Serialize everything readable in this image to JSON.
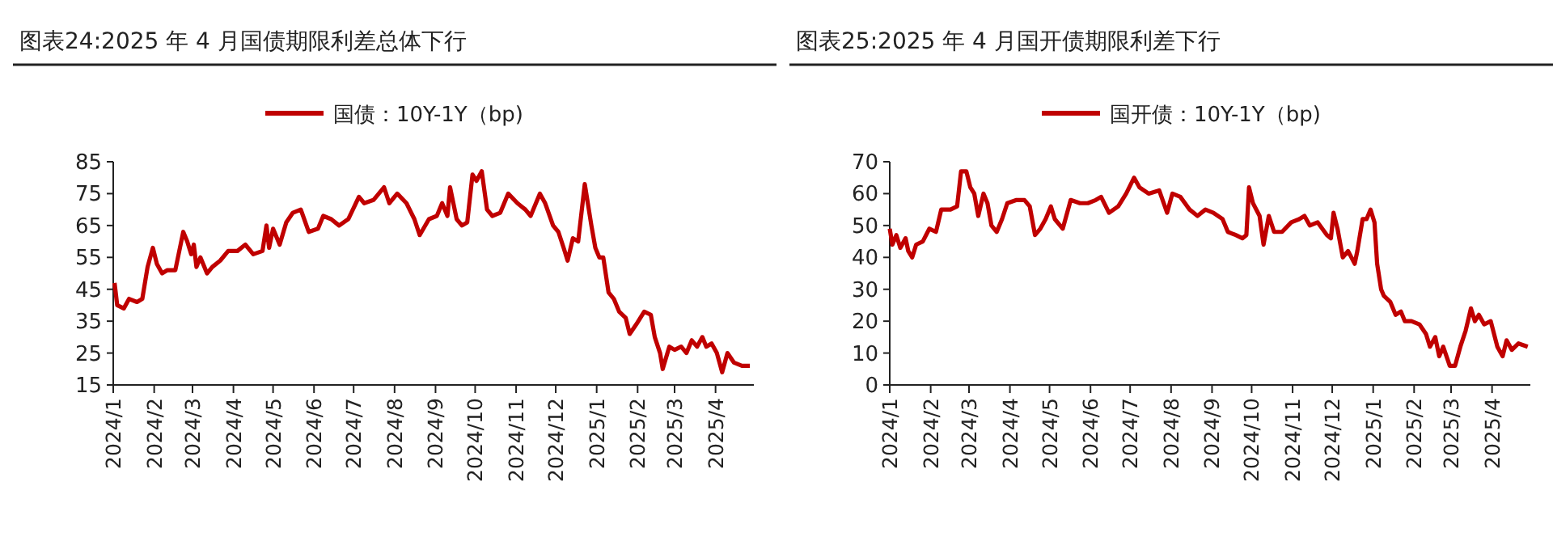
{
  "chart_data": [
    {
      "type": "line",
      "title": "图表24:2025 年 4 月国债期限利差总体下行",
      "legend": "top",
      "grid": false,
      "marker": "none",
      "line_style": "solid",
      "ylim": [
        15,
        85
      ],
      "yticks": [
        15,
        25,
        35,
        45,
        55,
        65,
        75,
        85
      ],
      "xlim": [
        "2024-01-01",
        "2025-04-30"
      ],
      "xticks": [
        {
          "value": "2024-01-01",
          "label": "2024/1"
        },
        {
          "value": "2024-02-01",
          "label": "2024/2"
        },
        {
          "value": "2024-03-01",
          "label": "2024/3"
        },
        {
          "value": "2024-04-01",
          "label": "2024/4"
        },
        {
          "value": "2024-05-01",
          "label": "2024/5"
        },
        {
          "value": "2024-06-01",
          "label": "2024/6"
        },
        {
          "value": "2024-07-01",
          "label": "2024/7"
        },
        {
          "value": "2024-08-01",
          "label": "2024/8"
        },
        {
          "value": "2024-09-01",
          "label": "2024/9"
        },
        {
          "value": "2024-10-01",
          "label": "2024/10"
        },
        {
          "value": "2024-11-01",
          "label": "2024/11"
        },
        {
          "value": "2024-12-01",
          "label": "2024/12"
        },
        {
          "value": "2025-01-01",
          "label": "2025/1"
        },
        {
          "value": "2025-02-01",
          "label": "2025/2"
        },
        {
          "value": "2025-03-01",
          "label": "2025/3"
        },
        {
          "value": "2025-04-01",
          "label": "2025/4"
        }
      ],
      "x": [
        "2024-01-02",
        "2024-01-04",
        "2024-01-09",
        "2024-01-13",
        "2024-01-19",
        "2024-01-23",
        "2024-01-27",
        "2024-01-31",
        "2024-02-03",
        "2024-02-07",
        "2024-02-11",
        "2024-02-17",
        "2024-02-23",
        "2024-02-26",
        "2024-02-29",
        "2024-03-02",
        "2024-03-04",
        "2024-03-07",
        "2024-03-12",
        "2024-03-16",
        "2024-03-22",
        "2024-03-28",
        "2024-04-04",
        "2024-04-10",
        "2024-04-16",
        "2024-04-23",
        "2024-04-26",
        "2024-04-28",
        "2024-05-01",
        "2024-05-06",
        "2024-05-11",
        "2024-05-16",
        "2024-05-22",
        "2024-05-28",
        "2024-06-04",
        "2024-06-08",
        "2024-06-14",
        "2024-06-20",
        "2024-06-27",
        "2024-07-05",
        "2024-07-09",
        "2024-07-16",
        "2024-07-24",
        "2024-07-28",
        "2024-08-03",
        "2024-08-10",
        "2024-08-16",
        "2024-08-20",
        "2024-08-27",
        "2024-09-02",
        "2024-09-06",
        "2024-09-10",
        "2024-09-12",
        "2024-09-17",
        "2024-09-21",
        "2024-09-25",
        "2024-09-29",
        "2024-10-02",
        "2024-10-06",
        "2024-10-10",
        "2024-10-14",
        "2024-10-20",
        "2024-10-26",
        "2024-11-02",
        "2024-11-08",
        "2024-11-12",
        "2024-11-19",
        "2024-11-23",
        "2024-11-29",
        "2024-12-03",
        "2024-12-07",
        "2024-12-10",
        "2024-12-14",
        "2024-12-18",
        "2024-12-23",
        "2024-12-28",
        "2024-12-31",
        "2025-01-03",
        "2025-01-06",
        "2025-01-10",
        "2025-01-14",
        "2025-01-18",
        "2025-01-23",
        "2025-01-26",
        "2025-01-31",
        "2025-02-06",
        "2025-02-11",
        "2025-02-14",
        "2025-02-18",
        "2025-02-20",
        "2025-02-25",
        "2025-03-01",
        "2025-03-06",
        "2025-03-10",
        "2025-03-14",
        "2025-03-18",
        "2025-03-22",
        "2025-03-25",
        "2025-03-29",
        "2025-04-02",
        "2025-04-06",
        "2025-04-10",
        "2025-04-15",
        "2025-04-21",
        "2025-04-27"
      ],
      "series": [
        {
          "name": "国债：10Y-1Y（bp)",
          "color": "#c00000",
          "values": [
            47,
            40,
            39,
            42,
            41,
            42,
            52,
            58,
            53,
            50,
            51,
            51,
            63,
            60,
            56,
            59,
            52,
            55,
            50,
            52,
            54,
            57,
            57,
            59,
            56,
            57,
            65,
            58,
            64,
            59,
            66,
            69,
            70,
            63,
            64,
            68,
            67,
            65,
            67,
            74,
            72,
            73,
            77,
            72,
            75,
            72,
            67,
            62,
            67,
            68,
            72,
            68,
            77,
            67,
            65,
            66,
            81,
            79,
            82,
            70,
            68,
            69,
            75,
            72,
            70,
            68,
            75,
            72,
            65,
            63,
            58,
            54,
            61,
            60,
            78,
            65,
            58,
            55,
            55,
            44,
            42,
            38,
            36,
            31,
            34,
            38,
            37,
            30,
            25,
            20,
            27,
            26,
            27,
            25,
            29,
            27,
            30,
            27,
            28,
            25,
            19,
            25,
            22,
            21,
            21
          ]
        }
      ]
    },
    {
      "type": "line",
      "title": "图表25:2025 年 4 月国开债期限利差下行",
      "legend": "top",
      "grid": false,
      "marker": "none",
      "line_style": "solid",
      "ylim": [
        0,
        70
      ],
      "yticks": [
        0,
        10,
        20,
        30,
        40,
        50,
        60,
        70
      ],
      "xlim": [
        "2024-01-01",
        "2025-04-30"
      ],
      "xticks": [
        {
          "value": "2024-01-01",
          "label": "2024/1"
        },
        {
          "value": "2024-02-01",
          "label": "2024/2"
        },
        {
          "value": "2024-03-01",
          "label": "2024/3"
        },
        {
          "value": "2024-04-01",
          "label": "2024/4"
        },
        {
          "value": "2024-05-01",
          "label": "2024/5"
        },
        {
          "value": "2024-06-01",
          "label": "2024/6"
        },
        {
          "value": "2024-07-01",
          "label": "2024/7"
        },
        {
          "value": "2024-08-01",
          "label": "2024/8"
        },
        {
          "value": "2024-09-01",
          "label": "2024/9"
        },
        {
          "value": "2024-10-01",
          "label": "2024/10"
        },
        {
          "value": "2024-11-01",
          "label": "2024/11"
        },
        {
          "value": "2024-12-01",
          "label": "2024/12"
        },
        {
          "value": "2025-01-01",
          "label": "2025/1"
        },
        {
          "value": "2025-02-01",
          "label": "2025/2"
        },
        {
          "value": "2025-03-01",
          "label": "2025/3"
        },
        {
          "value": "2025-04-01",
          "label": "2025/4"
        }
      ],
      "x": [
        "2024-01-01",
        "2024-01-03",
        "2024-01-06",
        "2024-01-09",
        "2024-01-13",
        "2024-01-15",
        "2024-01-18",
        "2024-01-21",
        "2024-01-26",
        "2024-01-31",
        "2024-02-05",
        "2024-02-09",
        "2024-02-16",
        "2024-02-21",
        "2024-02-24",
        "2024-02-28",
        "2024-03-02",
        "2024-03-05",
        "2024-03-08",
        "2024-03-12",
        "2024-03-15",
        "2024-03-18",
        "2024-03-22",
        "2024-03-26",
        "2024-03-30",
        "2024-04-06",
        "2024-04-12",
        "2024-04-16",
        "2024-04-20",
        "2024-04-24",
        "2024-04-28",
        "2024-05-02",
        "2024-05-05",
        "2024-05-11",
        "2024-05-17",
        "2024-05-24",
        "2024-05-30",
        "2024-06-05",
        "2024-06-09",
        "2024-06-15",
        "2024-06-22",
        "2024-06-28",
        "2024-07-04",
        "2024-07-08",
        "2024-07-15",
        "2024-07-23",
        "2024-07-29",
        "2024-08-02",
        "2024-08-08",
        "2024-08-15",
        "2024-08-21",
        "2024-08-27",
        "2024-09-02",
        "2024-09-09",
        "2024-09-13",
        "2024-09-19",
        "2024-09-24",
        "2024-09-27",
        "2024-09-29",
        "2024-10-02",
        "2024-10-07",
        "2024-10-10",
        "2024-10-14",
        "2024-10-18",
        "2024-10-24",
        "2024-10-31",
        "2024-11-06",
        "2024-11-10",
        "2024-11-14",
        "2024-11-20",
        "2024-11-27",
        "2024-11-30",
        "2024-12-02",
        "2024-12-05",
        "2024-12-09",
        "2024-12-13",
        "2024-12-18",
        "2024-12-20",
        "2024-12-24",
        "2024-12-27",
        "2024-12-30",
        "2025-01-02",
        "2025-01-04",
        "2025-01-07",
        "2025-01-09",
        "2025-01-14",
        "2025-01-18",
        "2025-01-22",
        "2025-01-25",
        "2025-01-30",
        "2025-02-05",
        "2025-02-10",
        "2025-02-13",
        "2025-02-17",
        "2025-02-20",
        "2025-02-23",
        "2025-02-28",
        "2025-03-04",
        "2025-03-08",
        "2025-03-12",
        "2025-03-16",
        "2025-03-19",
        "2025-03-22",
        "2025-03-26",
        "2025-03-31",
        "2025-04-05",
        "2025-04-09",
        "2025-04-12",
        "2025-04-16",
        "2025-04-21",
        "2025-04-28"
      ],
      "series": [
        {
          "name": "国开债：10Y-1Y（bp)",
          "color": "#c00000",
          "values": [
            49,
            44,
            47,
            43,
            46,
            42,
            40,
            44,
            45,
            49,
            48,
            55,
            55,
            56,
            67,
            67,
            62,
            60,
            53,
            60,
            57,
            50,
            48,
            52,
            57,
            58,
            58,
            56,
            47,
            49,
            52,
            56,
            52,
            49,
            58,
            57,
            57,
            58,
            59,
            54,
            56,
            60,
            65,
            62,
            60,
            61,
            54,
            60,
            59,
            55,
            53,
            55,
            54,
            52,
            48,
            47,
            46,
            47,
            62,
            57,
            53,
            44,
            53,
            48,
            48,
            51,
            52,
            53,
            50,
            51,
            47,
            46,
            54,
            49,
            40,
            42,
            38,
            42,
            52,
            52,
            55,
            51,
            38,
            30,
            28,
            26,
            22,
            23,
            20,
            20,
            19,
            16,
            12,
            15,
            9,
            12,
            6,
            6,
            12,
            17,
            24,
            20,
            22,
            19,
            20,
            12,
            9,
            14,
            11,
            13,
            12
          ]
        }
      ]
    }
  ]
}
